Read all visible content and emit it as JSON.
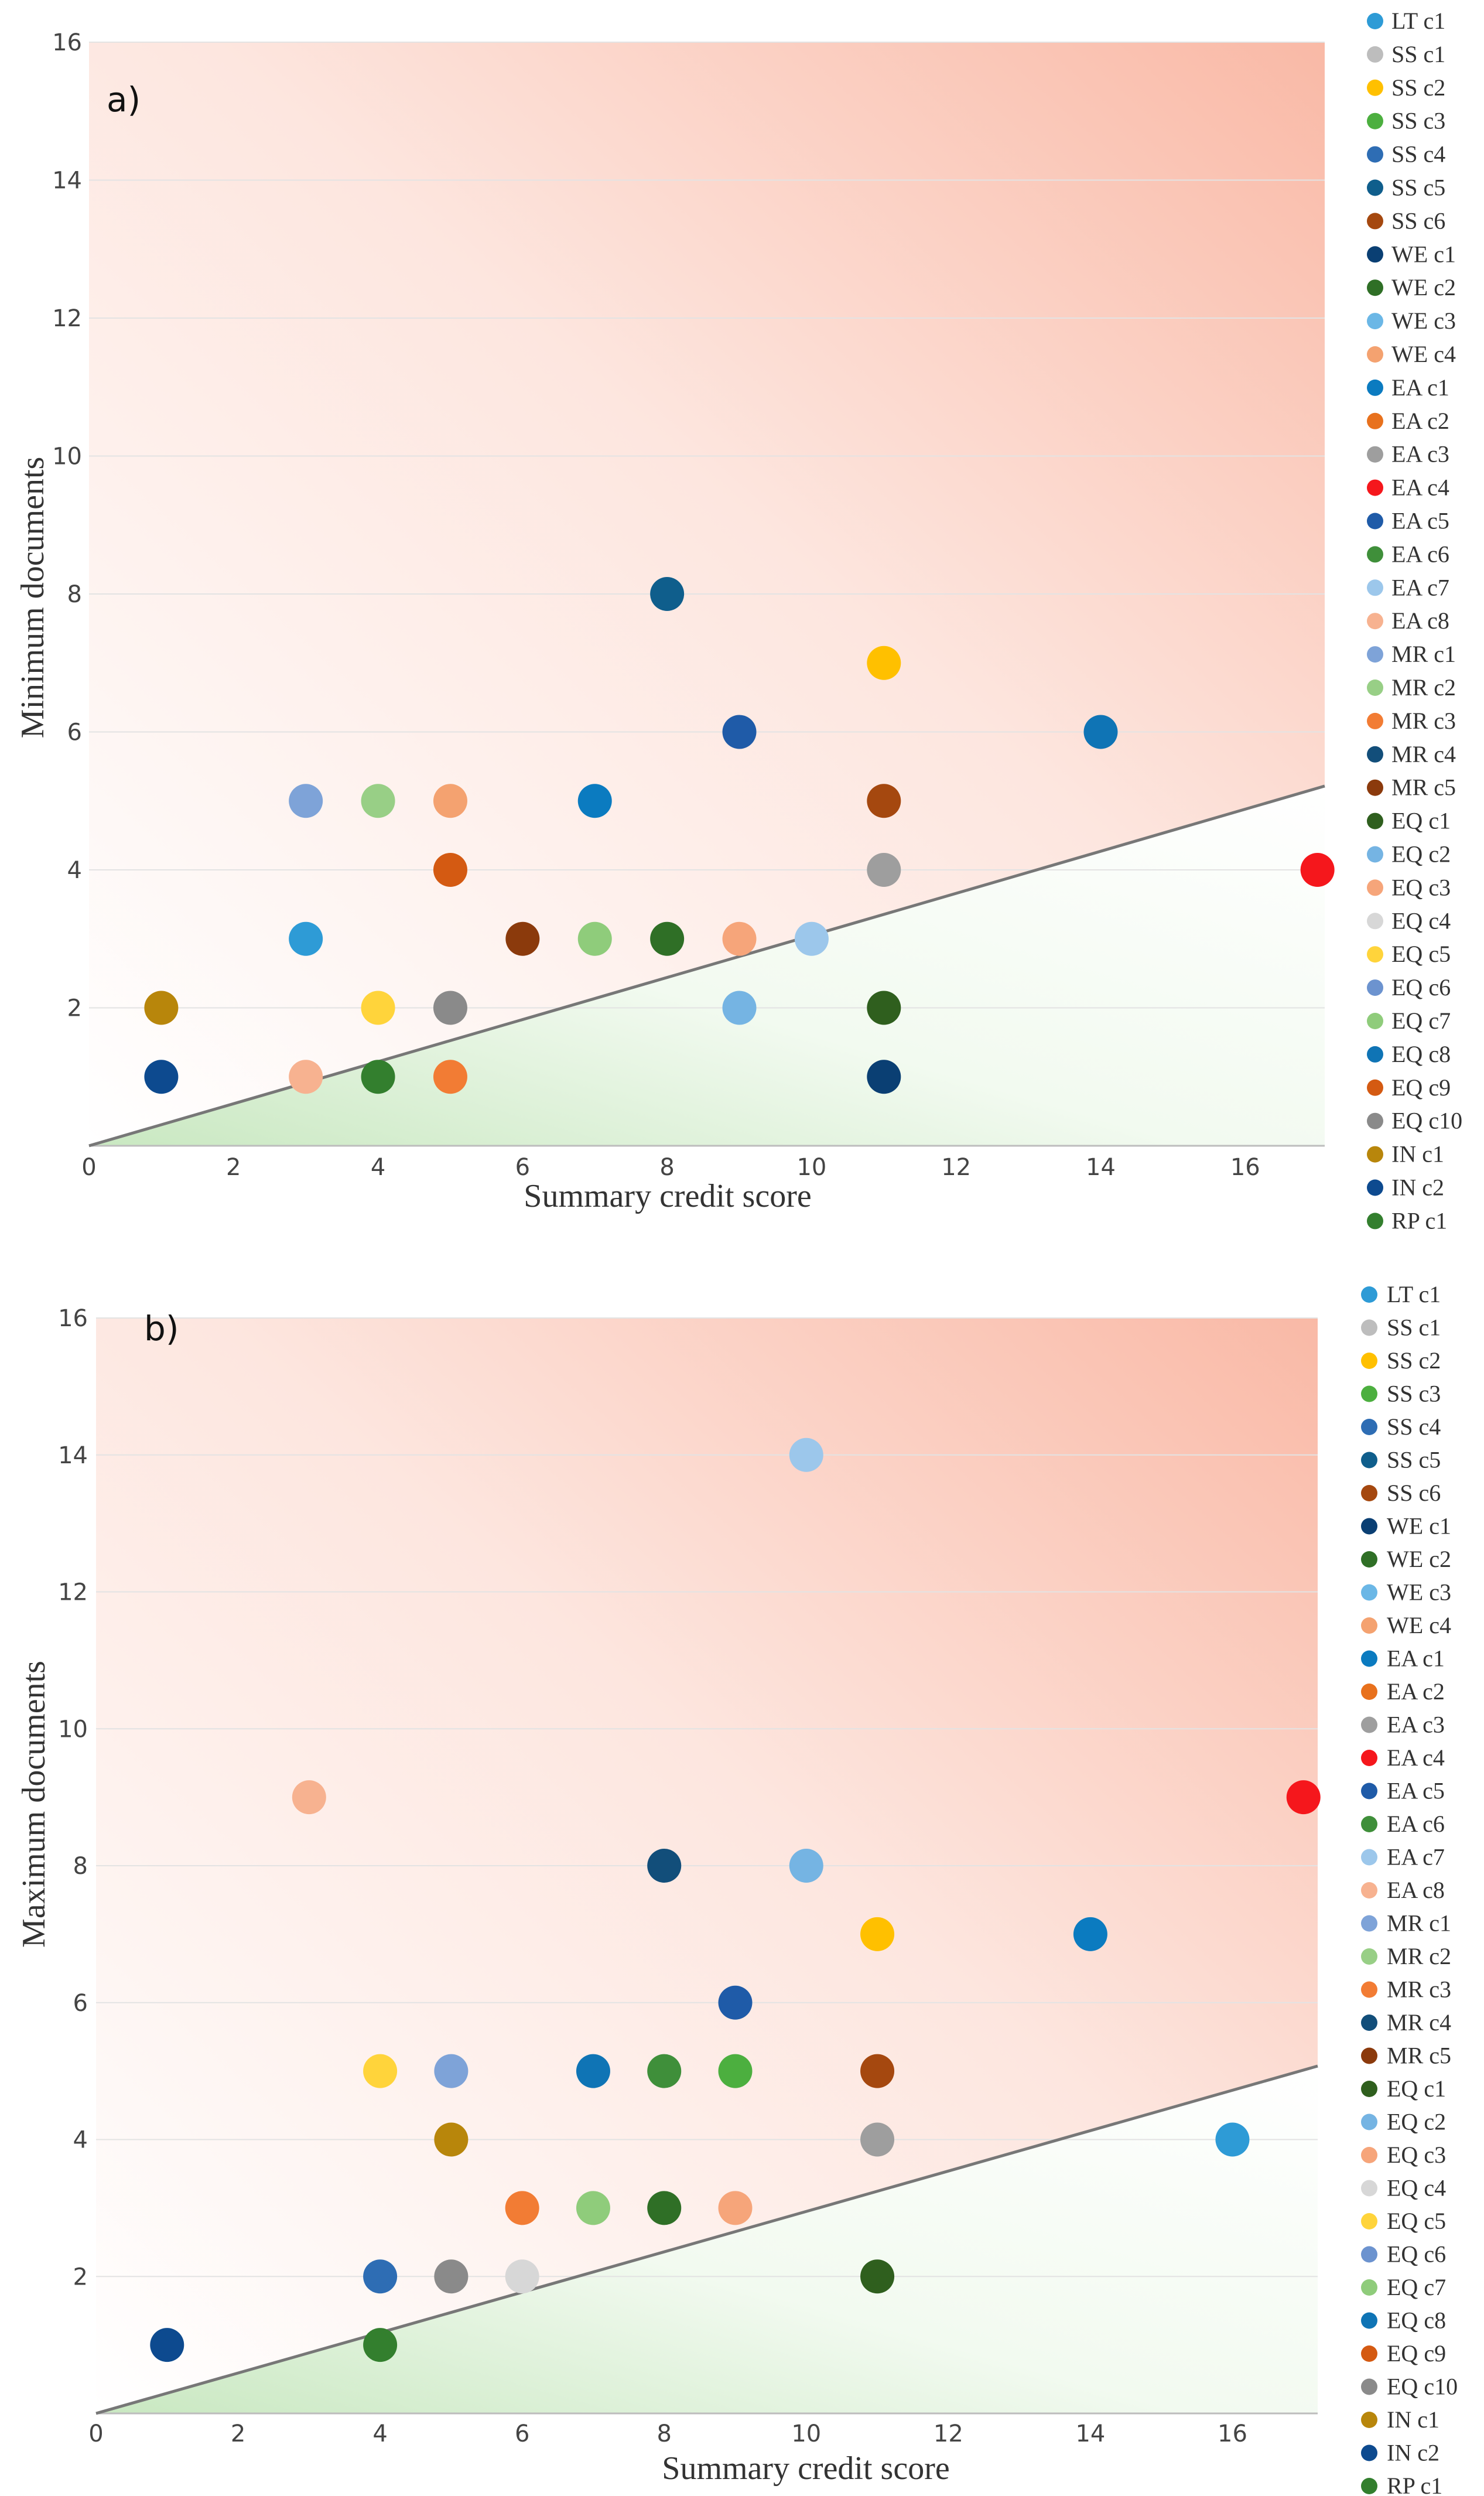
{
  "legend_entries": [
    {
      "label": "LT c1",
      "color": "#2E9BD6"
    },
    {
      "label": "SS c1",
      "color": "#BDBDBD"
    },
    {
      "label": "SS c2",
      "color": "#FFC000"
    },
    {
      "label": "SS c3",
      "color": "#4CAF3F"
    },
    {
      "label": "SS c4",
      "color": "#2E6DB4"
    },
    {
      "label": "SS c5",
      "color": "#0F5E8C"
    },
    {
      "label": "SS c6",
      "color": "#A5480F"
    },
    {
      "label": "WE c1",
      "color": "#0A3F73"
    },
    {
      "label": "WE c2",
      "color": "#2F6F26"
    },
    {
      "label": "WE c3",
      "color": "#6BB7E6"
    },
    {
      "label": "WE c4",
      "color": "#F4A270"
    },
    {
      "label": "EA c1",
      "color": "#0B7BC0"
    },
    {
      "label": "EA c2",
      "color": "#E8711D"
    },
    {
      "label": "EA c3",
      "color": "#9E9E9E"
    },
    {
      "label": "EA c4",
      "color": "#F5171C"
    },
    {
      "label": "EA c5",
      "color": "#1F5BA8"
    },
    {
      "label": "EA c6",
      "color": "#3F8F3A"
    },
    {
      "label": "EA c7",
      "color": "#9CC7EB"
    },
    {
      "label": "EA c8",
      "color": "#F7B290"
    },
    {
      "label": "MR c1",
      "color": "#7EA3D8"
    },
    {
      "label": "MR c2",
      "color": "#98CF86"
    },
    {
      "label": "MR c3",
      "color": "#F27C34"
    },
    {
      "label": "MR c4",
      "color": "#124E7A"
    },
    {
      "label": "MR c5",
      "color": "#8B3A0C"
    },
    {
      "label": "EQ c1",
      "color": "#2F5F1E"
    },
    {
      "label": "EQ c2",
      "color": "#75B4E3"
    },
    {
      "label": "EQ c3",
      "color": "#F6A57A"
    },
    {
      "label": "EQ c4",
      "color": "#D7D7D7"
    },
    {
      "label": "EQ c5",
      "color": "#FFD43B"
    },
    {
      "label": "EQ c6",
      "color": "#6C93CF"
    },
    {
      "label": "EQ c7",
      "color": "#8FCC7B"
    },
    {
      "label": "EQ c8",
      "color": "#0F74B5"
    },
    {
      "label": "EQ c9",
      "color": "#D45A12"
    },
    {
      "label": "EQ c10",
      "color": "#8A8A8A"
    },
    {
      "label": "IN c1",
      "color": "#B8860B"
    },
    {
      "label": "IN c2",
      "color": "#0D4A8F"
    },
    {
      "label": "RP c1",
      "color": "#337F2E"
    }
  ],
  "chart_data": [
    {
      "type": "scatter",
      "panel_label": "a)",
      "xlabel": "Summary credit score",
      "ylabel": "Minimum documents",
      "xlim": [
        0,
        17.1
      ],
      "ylim": [
        0,
        16
      ],
      "x_ticks": [
        "0",
        "2",
        "4",
        "6",
        "8",
        "10",
        "12",
        "14",
        "16"
      ],
      "y_ticks": [
        "2",
        "4",
        "6",
        "8",
        "10",
        "12",
        "14",
        "16"
      ],
      "x_tick_values": [
        0,
        2,
        4,
        6,
        8,
        10,
        12,
        14,
        16
      ],
      "y_tick_values": [
        2,
        4,
        6,
        8,
        10,
        12,
        14,
        16
      ],
      "reference_line": {
        "slope": 0.305
      },
      "points": [
        {
          "series": "IN c1",
          "x": 1,
          "y": 2
        },
        {
          "series": "IN c2",
          "x": 1,
          "y": 1
        },
        {
          "series": "MR c1",
          "x": 3,
          "y": 5
        },
        {
          "series": "LT c1",
          "x": 3,
          "y": 3
        },
        {
          "series": "EA c8",
          "x": 3,
          "y": 1
        },
        {
          "series": "MR c2",
          "x": 4,
          "y": 5
        },
        {
          "series": "EQ c5",
          "x": 4,
          "y": 2
        },
        {
          "series": "RP c1",
          "x": 4,
          "y": 1
        },
        {
          "series": "WE c4",
          "x": 5,
          "y": 5
        },
        {
          "series": "EQ c9",
          "x": 5,
          "y": 4
        },
        {
          "series": "EQ c10",
          "x": 5,
          "y": 2
        },
        {
          "series": "MR c3",
          "x": 5,
          "y": 1
        },
        {
          "series": "MR c5",
          "x": 6,
          "y": 3
        },
        {
          "series": "EA c1",
          "x": 7,
          "y": 5
        },
        {
          "series": "EQ c7",
          "x": 7,
          "y": 3
        },
        {
          "series": "SS c5",
          "x": 8,
          "y": 8
        },
        {
          "series": "WE c2",
          "x": 8,
          "y": 3
        },
        {
          "series": "EA c5",
          "x": 9,
          "y": 6
        },
        {
          "series": "EQ c3",
          "x": 9,
          "y": 3
        },
        {
          "series": "EQ c2",
          "x": 9,
          "y": 2
        },
        {
          "series": "EA c7",
          "x": 10,
          "y": 3
        },
        {
          "series": "SS c2",
          "x": 11,
          "y": 7
        },
        {
          "series": "SS c6",
          "x": 11,
          "y": 5
        },
        {
          "series": "EA c3",
          "x": 11,
          "y": 4
        },
        {
          "series": "EQ c1",
          "x": 11,
          "y": 2
        },
        {
          "series": "WE c1",
          "x": 11,
          "y": 1
        },
        {
          "series": "EQ c8",
          "x": 14,
          "y": 6
        },
        {
          "series": "EA c4",
          "x": 17,
          "y": 4
        }
      ]
    },
    {
      "type": "scatter",
      "panel_label": "b)",
      "xlabel": "Summary credit score",
      "ylabel": "Maximum documents",
      "xlim": [
        0,
        17.2
      ],
      "ylim": [
        0,
        16
      ],
      "x_ticks": [
        "0",
        "2",
        "4",
        "6",
        "8",
        "10",
        "12",
        "14",
        "16"
      ],
      "y_ticks": [
        "2",
        "4",
        "6",
        "8",
        "10",
        "12",
        "14",
        "16"
      ],
      "x_tick_values": [
        0,
        2,
        4,
        6,
        8,
        10,
        12,
        14,
        16
      ],
      "y_tick_values": [
        2,
        4,
        6,
        8,
        10,
        12,
        14,
        16
      ],
      "reference_line": {
        "slope": 0.295
      },
      "points": [
        {
          "series": "IN c2",
          "x": 1,
          "y": 1
        },
        {
          "series": "EA c8",
          "x": 3,
          "y": 9
        },
        {
          "series": "EQ c5",
          "x": 4,
          "y": 5
        },
        {
          "series": "SS c4",
          "x": 4,
          "y": 2
        },
        {
          "series": "RP c1",
          "x": 4,
          "y": 1
        },
        {
          "series": "MR c1",
          "x": 5,
          "y": 5
        },
        {
          "series": "IN c1",
          "x": 5,
          "y": 4
        },
        {
          "series": "EQ c10",
          "x": 5,
          "y": 2
        },
        {
          "series": "MR c3",
          "x": 6,
          "y": 3
        },
        {
          "series": "EQ c4",
          "x": 6,
          "y": 2
        },
        {
          "series": "EQ c8",
          "x": 7,
          "y": 5
        },
        {
          "series": "EQ c7",
          "x": 7,
          "y": 3
        },
        {
          "series": "MR c4",
          "x": 8,
          "y": 8
        },
        {
          "series": "EA c6",
          "x": 8,
          "y": 5
        },
        {
          "series": "WE c2",
          "x": 8,
          "y": 3
        },
        {
          "series": "EA c5",
          "x": 9,
          "y": 6
        },
        {
          "series": "SS c3",
          "x": 9,
          "y": 5
        },
        {
          "series": "EQ c3",
          "x": 9,
          "y": 3
        },
        {
          "series": "EA c7",
          "x": 10,
          "y": 14
        },
        {
          "series": "EQ c2",
          "x": 10,
          "y": 8
        },
        {
          "series": "SS c2",
          "x": 11,
          "y": 7
        },
        {
          "series": "SS c6",
          "x": 11,
          "y": 5
        },
        {
          "series": "EA c3",
          "x": 11,
          "y": 4
        },
        {
          "series": "EQ c1",
          "x": 11,
          "y": 2
        },
        {
          "series": "EA c1",
          "x": 14,
          "y": 7
        },
        {
          "series": "EA c4",
          "x": 17,
          "y": 9
        },
        {
          "series": "LT c1",
          "x": 16,
          "y": 4
        }
      ]
    }
  ]
}
